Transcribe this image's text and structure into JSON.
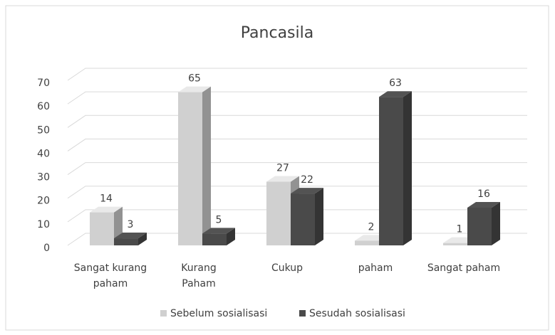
{
  "chart_data": {
    "type": "bar3d",
    "title": "Pancasila",
    "categories": [
      "Sangat kurang\npaham",
      "Kurang\nPaham",
      "Cukup",
      "paham",
      "Sangat paham"
    ],
    "series": [
      {
        "name": "Sebelum sosialisasi",
        "color": "#d0d0d0",
        "values": [
          14,
          65,
          27,
          2,
          1
        ]
      },
      {
        "name": "Sesudah sosialisasi",
        "color": "#4a4a4a",
        "values": [
          3,
          5,
          22,
          63,
          16
        ]
      }
    ],
    "ylim": [
      0,
      70
    ],
    "yticks": [
      0,
      10,
      20,
      30,
      40,
      50,
      60,
      70
    ],
    "grid": true,
    "legend": "bottom"
  }
}
